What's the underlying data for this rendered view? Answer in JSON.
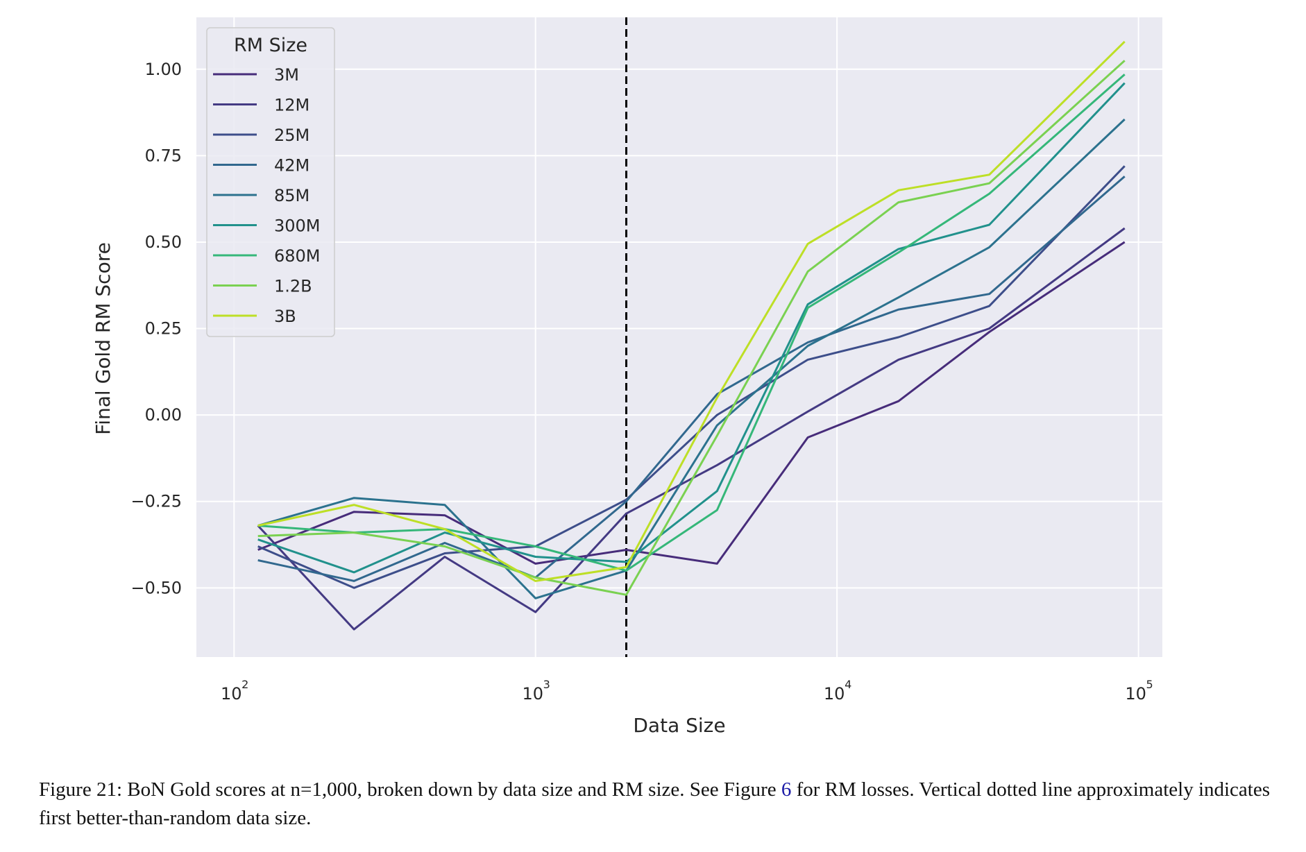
{
  "chart_data": {
    "type": "line",
    "xlabel": "Data Size",
    "ylabel": "Final Gold RM Score",
    "x_scale": "log",
    "xlim": [
      75,
      120000
    ],
    "ylim": [
      -0.7,
      1.15
    ],
    "x_ticks": [
      {
        "value": 100,
        "base": "10",
        "exp": "2"
      },
      {
        "value": 1000,
        "base": "10",
        "exp": "3"
      },
      {
        "value": 10000,
        "base": "10",
        "exp": "4"
      },
      {
        "value": 100000,
        "base": "10",
        "exp": "5"
      }
    ],
    "y_ticks": [
      {
        "value": 1.0,
        "label": "1.00"
      },
      {
        "value": 0.75,
        "label": "0.75"
      },
      {
        "value": 0.5,
        "label": "0.50"
      },
      {
        "value": 0.25,
        "label": "0.25"
      },
      {
        "value": 0.0,
        "label": "0.00"
      },
      {
        "value": -0.25,
        "label": "−0.25"
      },
      {
        "value": -0.5,
        "label": "−0.50"
      }
    ],
    "grid": true,
    "vline": {
      "x": 2000,
      "style": "dashed"
    },
    "legend": {
      "title": "RM Size",
      "placement": "top-left"
    },
    "x": [
      120,
      250,
      500,
      1000,
      2000,
      4000,
      8000,
      16000,
      32000,
      90000
    ],
    "series": [
      {
        "name": "3M",
        "color": "#472c7a",
        "values": [
          -0.39,
          -0.28,
          -0.29,
          -0.43,
          -0.39,
          -0.43,
          -0.065,
          0.04,
          0.24,
          0.5
        ]
      },
      {
        "name": "12M",
        "color": "#443a83",
        "values": [
          -0.32,
          -0.62,
          -0.41,
          -0.57,
          -0.285,
          -0.145,
          0.01,
          0.16,
          0.25,
          0.54
        ]
      },
      {
        "name": "25M",
        "color": "#3d4e8a",
        "values": [
          -0.38,
          -0.5,
          -0.4,
          -0.38,
          -0.245,
          0.0,
          0.16,
          0.225,
          0.315,
          0.72
        ]
      },
      {
        "name": "42M",
        "color": "#31688e",
        "values": [
          -0.42,
          -0.48,
          -0.37,
          -0.47,
          -0.25,
          0.06,
          0.21,
          0.305,
          0.35,
          0.69
        ]
      },
      {
        "name": "85M",
        "color": "#2c728e",
        "values": [
          -0.32,
          -0.24,
          -0.26,
          -0.53,
          -0.45,
          -0.03,
          0.2,
          0.34,
          0.485,
          0.855
        ]
      },
      {
        "name": "300M",
        "color": "#21918c",
        "values": [
          -0.36,
          -0.455,
          -0.34,
          -0.41,
          -0.425,
          -0.22,
          0.32,
          0.48,
          0.55,
          0.96
        ]
      },
      {
        "name": "680M",
        "color": "#35b779",
        "values": [
          -0.32,
          -0.34,
          -0.33,
          -0.38,
          -0.45,
          -0.275,
          0.31,
          0.47,
          0.64,
          0.985
        ]
      },
      {
        "name": "1.2B",
        "color": "#7ad151",
        "values": [
          -0.35,
          -0.34,
          -0.38,
          -0.47,
          -0.52,
          -0.06,
          0.415,
          0.615,
          0.67,
          1.025
        ]
      },
      {
        "name": "3B",
        "color": "#bddf26",
        "values": [
          -0.32,
          -0.26,
          -0.33,
          -0.48,
          -0.44,
          0.05,
          0.495,
          0.65,
          0.695,
          1.08
        ]
      }
    ]
  },
  "caption": {
    "prefix": "Figure 21: BoN Gold scores at n=1,000, broken down by data size and RM size. See Figure ",
    "ref": "6",
    "suffix": " for RM losses. Vertical dotted line approximately indicates first better-than-random data size."
  }
}
